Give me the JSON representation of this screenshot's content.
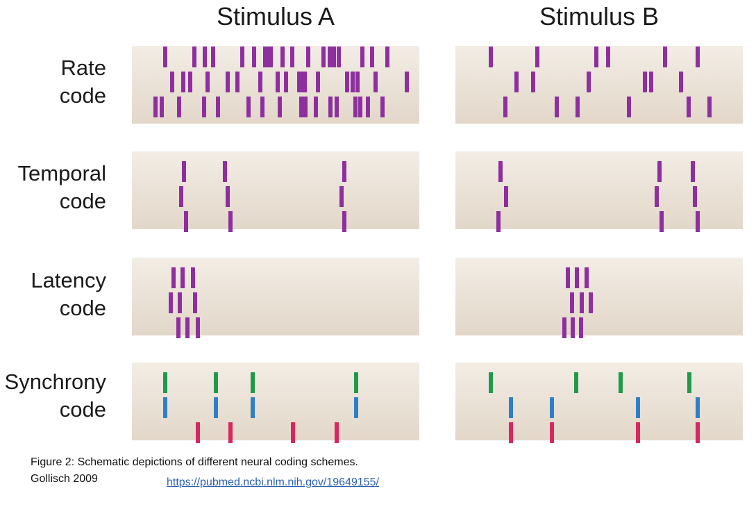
{
  "stimuli": [
    "Stimulus A",
    "Stimulus B"
  ],
  "rows": [
    {
      "label_line1": "Rate",
      "label_line2": "code",
      "trains": {
        "A": [
          [
            238,
            280,
            295,
            307,
            349,
            366,
            382,
            386,
            390,
            407,
            421,
            444,
            466,
            475,
            481,
            488,
            522,
            536,
            558
          ],
          [
            248,
            264,
            274,
            299,
            328,
            342,
            375,
            400,
            412,
            431,
            435,
            439,
            458,
            500,
            508,
            515,
            541,
            586
          ],
          [
            224,
            233,
            258,
            294,
            314,
            358,
            378,
            403,
            434,
            440,
            455,
            476,
            485,
            512,
            519,
            530,
            551
          ]
        ],
        "B": [
          [
            707,
            774,
            859,
            876,
            958,
            1005
          ],
          [
            744,
            768,
            848,
            929,
            938,
            981
          ],
          [
            728,
            802,
            832,
            906,
            992,
            1022
          ]
        ]
      }
    },
    {
      "label_line1": "Temporal",
      "label_line2": "code",
      "trains": {
        "A": [
          [
            265,
            324,
            496
          ],
          [
            261,
            328,
            492
          ],
          [
            268,
            332,
            496
          ]
        ],
        "B": [
          [
            721,
            950,
            998
          ],
          [
            729,
            946,
            1001
          ],
          [
            718,
            953,
            1005
          ]
        ]
      }
    },
    {
      "label_line1": "Latency",
      "label_line2": "code",
      "trains": {
        "A": [
          [
            250,
            263,
            278
          ],
          [
            246,
            259,
            281
          ],
          [
            257,
            270,
            285
          ]
        ],
        "B": [
          [
            818,
            831,
            845
          ],
          [
            824,
            838,
            851
          ],
          [
            813,
            825,
            837
          ]
        ]
      }
    },
    {
      "label_line1": "Synchrony",
      "label_line2": "code",
      "trains": {
        "A": [
          [
            238,
            311,
            364,
            513
          ],
          [
            238,
            311,
            364,
            513
          ],
          [
            285,
            332,
            422,
            485
          ]
        ],
        "B": [
          [
            707,
            830,
            894,
            993
          ],
          [
            736,
            795,
            919,
            1005
          ],
          [
            736,
            795,
            919,
            1005
          ]
        ]
      }
    }
  ],
  "colors": {
    "spike": "#8e2f9f",
    "sync": [
      "#1f9a4a",
      "#2f7fc8",
      "#d8275f"
    ],
    "panel_top": "#f3ede5",
    "panel_bottom": "#e2d7c9"
  },
  "caption": {
    "line1": "Figure 2: Schematic depictions of different neural coding schemes.",
    "line2": "Gollisch 2009",
    "link": "https://pubmed.ncbi.nlm.nih.gov/19649155/"
  }
}
